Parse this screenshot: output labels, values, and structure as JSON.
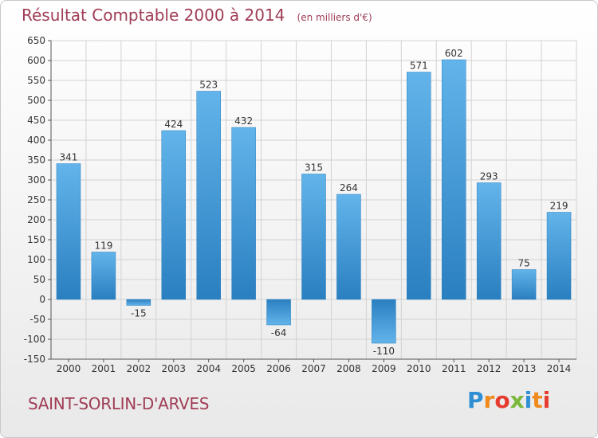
{
  "header": {
    "title": "Résultat Comptable 2000 à 2014",
    "subtitle": "(en milliers d'€)"
  },
  "footer": {
    "commune": "SAINT-SORLIN-D'ARVES",
    "logo_text": "Proxiti"
  },
  "colors": {
    "title": "#a03d56",
    "bar_light": "#5fb0e8",
    "bar_dark": "#2a7fc0",
    "grid": "#cfcfcf"
  },
  "chart_data": {
    "type": "bar",
    "title": "Résultat Comptable 2000 à 2014",
    "subtitle": "(en milliers d'€)",
    "categories": [
      "2000",
      "2001",
      "2002",
      "2003",
      "2004",
      "2005",
      "2006",
      "2007",
      "2008",
      "2009",
      "2010",
      "2011",
      "2012",
      "2013",
      "2014"
    ],
    "values": [
      341,
      119,
      -15,
      424,
      523,
      432,
      -64,
      315,
      264,
      -110,
      571,
      602,
      293,
      75,
      219
    ],
    "ylim": [
      -150,
      650
    ],
    "yticks": [
      -150,
      -100,
      -50,
      0,
      50,
      100,
      150,
      200,
      250,
      300,
      350,
      400,
      450,
      500,
      550,
      600,
      650
    ],
    "grid": true,
    "legend": "none"
  }
}
